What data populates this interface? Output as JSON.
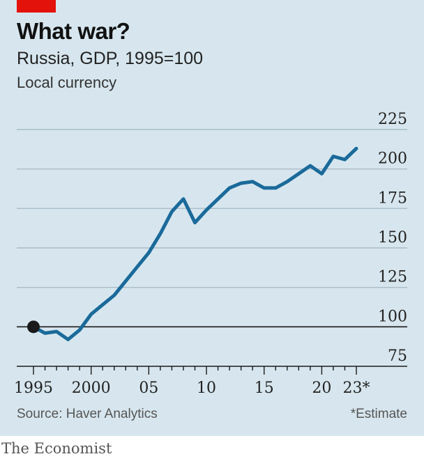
{
  "brand": "The Economist",
  "title": "What war?",
  "subtitle": "Russia, GDP, 1995=100",
  "units": "Local currency",
  "source": "Source: Haver Analytics",
  "footnote": "*Estimate",
  "colors": {
    "background": "#d7e6ee",
    "line": "#1a6a9a",
    "accent": "#e3120b",
    "marker": "#1a1a1a"
  },
  "chart_data": {
    "type": "line",
    "title": "What war?",
    "subtitle": "Russia, GDP, 1995=100",
    "ylabel": "Local currency",
    "x": [
      1995,
      1996,
      1997,
      1998,
      1999,
      2000,
      2001,
      2002,
      2003,
      2004,
      2005,
      2006,
      2007,
      2008,
      2009,
      2010,
      2011,
      2012,
      2013,
      2014,
      2015,
      2016,
      2017,
      2018,
      2019,
      2020,
      2021,
      2022,
      2023
    ],
    "series": [
      {
        "values": [
          100,
          96,
          97,
          92,
          98,
          108,
          114,
          120,
          129,
          138,
          147,
          159,
          173,
          181,
          166,
          174,
          181,
          188,
          191,
          192,
          188,
          188,
          192,
          197,
          202,
          197,
          208,
          206,
          213
        ]
      }
    ],
    "ylim": [
      75,
      225
    ],
    "xlim": [
      1995,
      2023
    ],
    "yticks": [
      75,
      100,
      125,
      150,
      175,
      200,
      225
    ],
    "ytick_labels": [
      "75",
      "100",
      "125",
      "150",
      "175",
      "200",
      "225"
    ],
    "xticks": [
      1995,
      2000,
      2005,
      2010,
      2015,
      2020,
      2023
    ],
    "xtick_labels": [
      "1995",
      "2000",
      "05",
      "10",
      "15",
      "20",
      "23*"
    ],
    "baseline": 100,
    "start_marker": {
      "x": 1995,
      "y": 100
    },
    "grid": "horizontal"
  }
}
